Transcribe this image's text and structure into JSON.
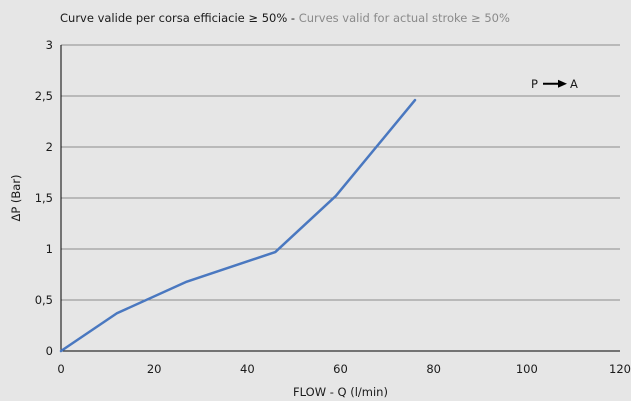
{
  "header": {
    "title_it": "Curve valide per corsa efficiacie ≥ 50%",
    "separator": " - ",
    "title_en": "Curves valid for actual stroke ≥ 50%"
  },
  "chart_data": {
    "type": "line",
    "xlabel": "FLOW - Q (l/min)",
    "ylabel": "ΔP (Bar)",
    "xlim": [
      0,
      120
    ],
    "ylim": [
      0,
      3
    ],
    "x_ticks": [
      {
        "value": 0,
        "label": "0"
      },
      {
        "value": 20,
        "label": "20"
      },
      {
        "value": 40,
        "label": "40"
      },
      {
        "value": 60,
        "label": "60"
      },
      {
        "value": 80,
        "label": "80"
      },
      {
        "value": 100,
        "label": "100"
      },
      {
        "value": 120,
        "label": "120"
      }
    ],
    "y_ticks": [
      {
        "value": 0,
        "label": "0"
      },
      {
        "value": 0.5,
        "label": "0,5"
      },
      {
        "value": 1,
        "label": "1"
      },
      {
        "value": 1.5,
        "label": "1,5"
      },
      {
        "value": 2,
        "label": "2"
      },
      {
        "value": 2.5,
        "label": "2,5"
      },
      {
        "value": 3,
        "label": "3"
      }
    ],
    "grid": "horizontal",
    "series": [
      {
        "color": "#4a78c0",
        "x": [
          0,
          12,
          27,
          46,
          59,
          76
        ],
        "y": [
          0,
          0.37,
          0.68,
          0.97,
          1.52,
          2.46
        ]
      }
    ],
    "annotation": {
      "from": "P",
      "to": "A"
    }
  }
}
